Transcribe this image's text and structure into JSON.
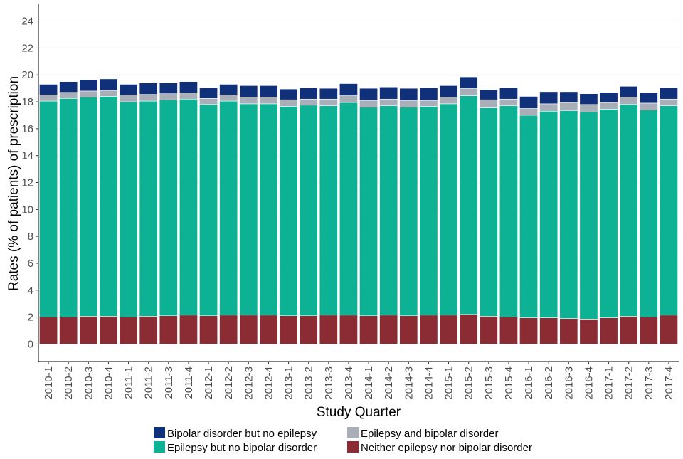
{
  "chart_data": {
    "type": "bar",
    "stacked": true,
    "xlabel": "Study Quarter",
    "ylabel": "Rates (% of patients) of prescription",
    "ylim": [
      -1.3,
      25.3
    ],
    "yticks": [
      0,
      2,
      4,
      6,
      8,
      10,
      12,
      14,
      16,
      18,
      20,
      22,
      24
    ],
    "grid": "horizontal, light",
    "legend_position": "bottom",
    "categories": [
      "2010-1",
      "2010-2",
      "2010-3",
      "2010-4",
      "2011-1",
      "2011-2",
      "2011-3",
      "2011-4",
      "2012-1",
      "2012-2",
      "2012-3",
      "2012-4",
      "2013-1",
      "2013-2",
      "2013-3",
      "2013-4",
      "2014-1",
      "2014-2",
      "2014-3",
      "2014-4",
      "2015-1",
      "2015-2",
      "2015-3",
      "2015-4",
      "2016-1",
      "2016-2",
      "2016-3",
      "2016-4",
      "2017-1",
      "2017-2",
      "2017-3",
      "2017-4"
    ],
    "series": [
      {
        "name": "Neither epilepsy nor bipolar disorder",
        "color": "#8b2c34",
        "values": [
          2.0,
          2.0,
          2.05,
          2.05,
          2.0,
          2.05,
          2.1,
          2.15,
          2.1,
          2.15,
          2.15,
          2.15,
          2.1,
          2.1,
          2.15,
          2.15,
          2.1,
          2.15,
          2.1,
          2.15,
          2.15,
          2.2,
          2.05,
          2.0,
          1.95,
          1.95,
          1.9,
          1.85,
          1.95,
          2.05,
          2.0,
          2.15
        ]
      },
      {
        "name": "Epilepsy but no bipolar disorder",
        "color": "#0db193",
        "values": [
          16.05,
          16.25,
          16.3,
          16.35,
          16.0,
          16.0,
          16.05,
          16.05,
          15.7,
          15.9,
          15.7,
          15.7,
          15.55,
          15.65,
          15.55,
          15.8,
          15.5,
          15.55,
          15.5,
          15.5,
          15.7,
          16.25,
          15.5,
          15.7,
          15.05,
          15.35,
          15.45,
          15.4,
          15.5,
          15.75,
          15.4,
          15.55
        ]
      },
      {
        "name": "Epilepsy and bipolar disorder",
        "color": "#a9afb8",
        "values": [
          0.45,
          0.45,
          0.45,
          0.45,
          0.5,
          0.5,
          0.45,
          0.45,
          0.45,
          0.45,
          0.5,
          0.5,
          0.5,
          0.45,
          0.5,
          0.5,
          0.5,
          0.5,
          0.5,
          0.45,
          0.5,
          0.55,
          0.6,
          0.5,
          0.5,
          0.55,
          0.6,
          0.55,
          0.5,
          0.55,
          0.5,
          0.5
        ]
      },
      {
        "name": "Bipolar disorder but no epilepsy",
        "color": "#10307a",
        "values": [
          0.8,
          0.8,
          0.85,
          0.85,
          0.8,
          0.85,
          0.8,
          0.85,
          0.8,
          0.8,
          0.85,
          0.85,
          0.8,
          0.85,
          0.8,
          0.9,
          0.9,
          0.9,
          0.9,
          0.95,
          0.85,
          0.85,
          0.75,
          0.85,
          0.9,
          0.9,
          0.8,
          0.8,
          0.75,
          0.8,
          0.8,
          0.85
        ]
      }
    ],
    "legend_order": [
      "Bipolar disorder but no epilepsy",
      "Epilepsy and bipolar disorder",
      "Epilepsy but no bipolar disorder",
      "Neither epilepsy nor bipolar disorder"
    ]
  }
}
